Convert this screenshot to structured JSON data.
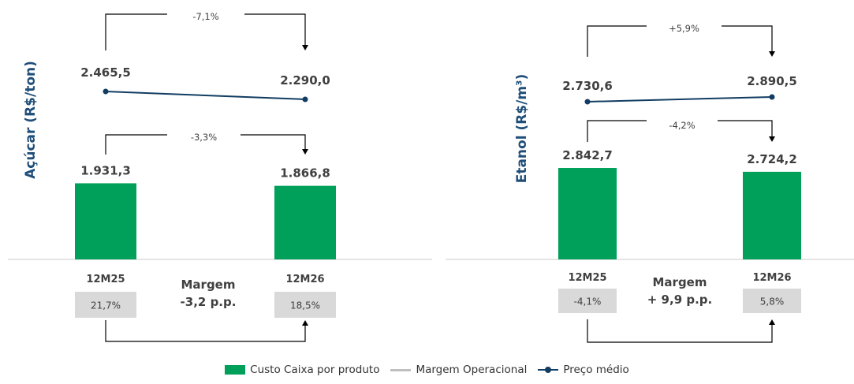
{
  "colors": {
    "bar": "#00a05a",
    "line": "#123d63",
    "title": "#1f4e79",
    "label": "#404040",
    "margin_box": "#d9d9d9",
    "bracket": "#000000"
  },
  "chart_data": [
    {
      "type": "bar+line",
      "ylabel": "Açúcar (R$/ton)",
      "categories": [
        "12M25",
        "12M26"
      ],
      "series": [
        {
          "name": "Custo Caixa por produto",
          "type": "bar",
          "values": [
            1931.3,
            1866.8
          ],
          "labels": [
            "1.931,3",
            "1.866,8"
          ]
        },
        {
          "name": "Preço médio",
          "type": "line",
          "values": [
            2465.5,
            2290.0
          ],
          "labels": [
            "2.465,5",
            "2.290,0"
          ]
        },
        {
          "name": "Margem Operacional",
          "type": "box",
          "values": [
            21.7,
            18.5
          ],
          "labels": [
            "21,7%",
            "18,5%"
          ]
        }
      ],
      "annotations": {
        "price_change": "-7,1%",
        "cost_change": "-3,3%",
        "margin_title": "Margem",
        "margin_change": "-3,2 p.p."
      }
    },
    {
      "type": "bar+line",
      "ylabel": "Etanol (R$/m³)",
      "categories": [
        "12M25",
        "12M26"
      ],
      "series": [
        {
          "name": "Custo Caixa por produto",
          "type": "bar",
          "values": [
            2842.7,
            2724.2
          ],
          "labels": [
            "2.842,7",
            "2.724,2"
          ]
        },
        {
          "name": "Preço médio",
          "type": "line",
          "values": [
            2730.6,
            2890.5
          ],
          "labels": [
            "2.730,6",
            "2.890,5"
          ]
        },
        {
          "name": "Margem Operacional",
          "type": "box",
          "values": [
            -4.1,
            5.8
          ],
          "labels": [
            "-4,1%",
            "5,8%"
          ]
        }
      ],
      "annotations": {
        "price_change": "+5,9%",
        "cost_change": "-4,2%",
        "margin_title": "Margem",
        "margin_change": "+ 9,9 p.p."
      }
    }
  ],
  "legend": [
    {
      "label": "Custo Caixa por produto",
      "kind": "bar"
    },
    {
      "label": "Margem Operacional",
      "kind": "line"
    },
    {
      "label": "Preço médio",
      "kind": "line-marker"
    }
  ]
}
